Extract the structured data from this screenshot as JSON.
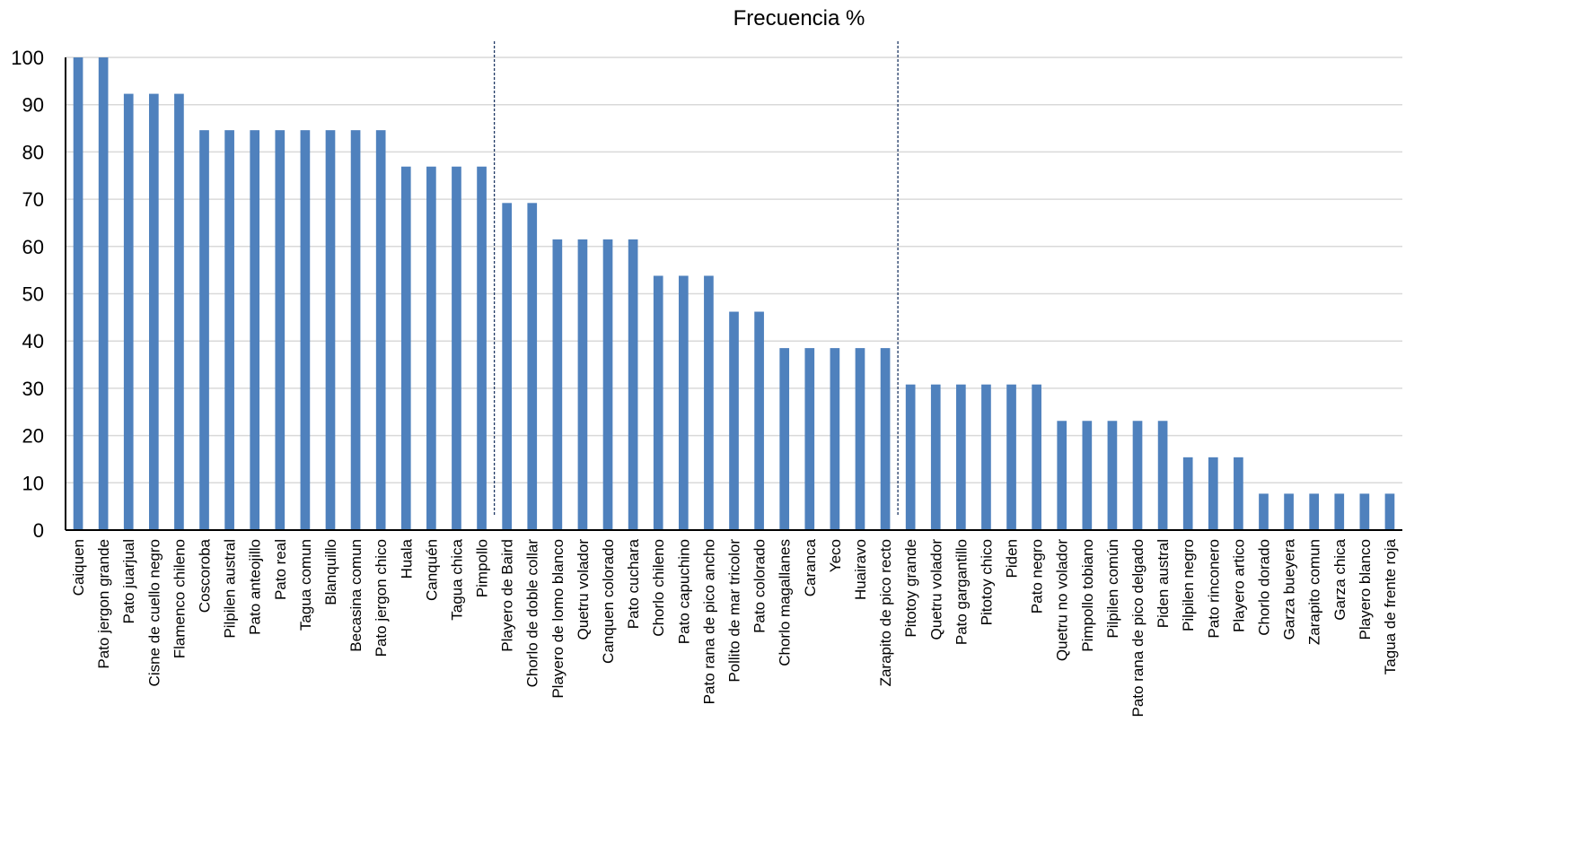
{
  "chart_data": {
    "type": "bar",
    "title": "Frecuencia %",
    "xlabel": "",
    "ylabel": "",
    "ylim": [
      0,
      100
    ],
    "yticks": [
      0,
      10,
      20,
      30,
      40,
      50,
      60,
      70,
      80,
      90,
      100
    ],
    "grid": true,
    "legend": "none",
    "bar_color": "#4F81BD",
    "grid_color": "#D9D9D9",
    "separator_color": "#1F3864",
    "separators_after": [
      "Pimpollo",
      "Zarapito de pico recto"
    ],
    "categories": [
      "Caiquen",
      "Pato jergon grande",
      "Pato juarjual",
      "Cisne de cuello negro",
      "Flamenco chileno",
      "Coscoroba",
      "Pilpilen austral",
      "Pato anteojillo",
      "Pato real",
      "Tagua comun",
      "Blanquillo",
      "Becasina comun",
      "Pato jergon chico",
      "Huala",
      "Canquén",
      "Tagua chica",
      "Pimpollo",
      "Playero de Baird",
      "Chorlo de doble collar",
      "Playero de lomo blanco",
      "Quetru volador",
      "Canquen colorado",
      "Pato cuchara",
      "Chorlo chileno",
      "Pato capuchino",
      "Pato rana de pico ancho",
      "Pollito de mar tricolor",
      "Pato colorado",
      "Chorlo magallanes",
      "Caranca",
      "Yeco",
      "Huairavo",
      "Zarapito de pico recto",
      "Pitotoy grande",
      "Quetru volador",
      "Pato gargantillo",
      "Pitotoy chico",
      "Piden",
      "Pato negro",
      "Quetru no volador",
      "Pimpollo tobiano",
      "Pilpilen común",
      "Pato rana de pico delgado",
      "Piden austral",
      "Pilpilen negro",
      "Pato rinconero",
      "Playero artico",
      "Chorlo dorado",
      "Garza bueyera",
      "Zarapito comun",
      "Garza chica",
      "Playero blanco",
      "Tagua de frente roja"
    ],
    "values": [
      100,
      100,
      92.3,
      92.3,
      92.3,
      84.6,
      84.6,
      84.6,
      84.6,
      84.6,
      84.6,
      84.6,
      84.6,
      76.9,
      76.9,
      76.9,
      76.9,
      69.2,
      69.2,
      61.5,
      61.5,
      61.5,
      61.5,
      53.8,
      53.8,
      53.8,
      46.2,
      46.2,
      38.5,
      38.5,
      38.5,
      38.5,
      38.5,
      30.8,
      30.8,
      30.8,
      30.8,
      30.8,
      30.8,
      23.1,
      23.1,
      23.1,
      23.1,
      23.1,
      15.4,
      15.4,
      15.4,
      7.7,
      7.7,
      7.7,
      7.7,
      7.7,
      7.7
    ]
  }
}
